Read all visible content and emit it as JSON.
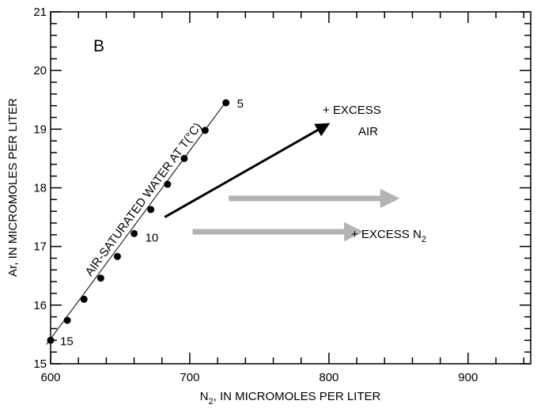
{
  "chart_data": {
    "type": "scatter",
    "panel_label": "B",
    "xlabel": {
      "pre": "N",
      "sub": "2",
      "post": ", IN MICROMOLES PER LITER"
    },
    "ylabel": "Ar, IN MICROMOLES PER LITER",
    "xlim": [
      600,
      945
    ],
    "ylim": [
      15,
      21
    ],
    "xticks": [
      600,
      700,
      800,
      900
    ],
    "yticks": [
      15,
      16,
      17,
      18,
      19,
      20,
      21
    ],
    "xtick_labels": [
      "600",
      "700",
      "800",
      "900"
    ],
    "ytick_labels": [
      "15",
      "16",
      "17",
      "18",
      "19",
      "20",
      "21"
    ],
    "grid": false,
    "series": [
      {
        "label": "AIR-SATURATED WATER AT T(°C)",
        "line": [
          [
            597,
            15.33
          ],
          [
            727,
            19.5
          ]
        ],
        "points": [
          [
            600,
            15.4
          ],
          [
            612,
            15.74
          ],
          [
            624,
            16.1
          ],
          [
            636,
            16.46
          ],
          [
            648,
            16.83
          ],
          [
            660,
            17.22
          ],
          [
            672,
            17.63
          ],
          [
            684,
            18.06
          ],
          [
            696,
            18.5
          ],
          [
            711,
            18.98
          ],
          [
            726,
            19.45
          ]
        ]
      }
    ],
    "point_labels": [
      {
        "text": "5",
        "x": 726,
        "y": 19.45
      },
      {
        "text": "10",
        "x": 660,
        "y": 17.22
      },
      {
        "text": "15",
        "x": 600,
        "y": 15.4
      }
    ],
    "vectors": [
      {
        "name": "excess-air",
        "color": "#000000",
        "from": [
          682,
          17.5
        ],
        "to": [
          799,
          19.08
        ]
      },
      {
        "name": "excess-n2-upper",
        "color": "#b3b3b3",
        "from": [
          728,
          17.82
        ],
        "to": [
          848,
          17.82
        ]
      },
      {
        "name": "excess-n2-lower",
        "color": "#b3b3b3",
        "from": [
          702,
          17.25
        ],
        "to": [
          822,
          17.25
        ]
      }
    ],
    "annotations": {
      "excess_air_line1": "+ EXCESS",
      "excess_air_line2": "AIR",
      "excess_n2": {
        "pre": "+ EXCESS N",
        "sub": "2"
      }
    }
  }
}
